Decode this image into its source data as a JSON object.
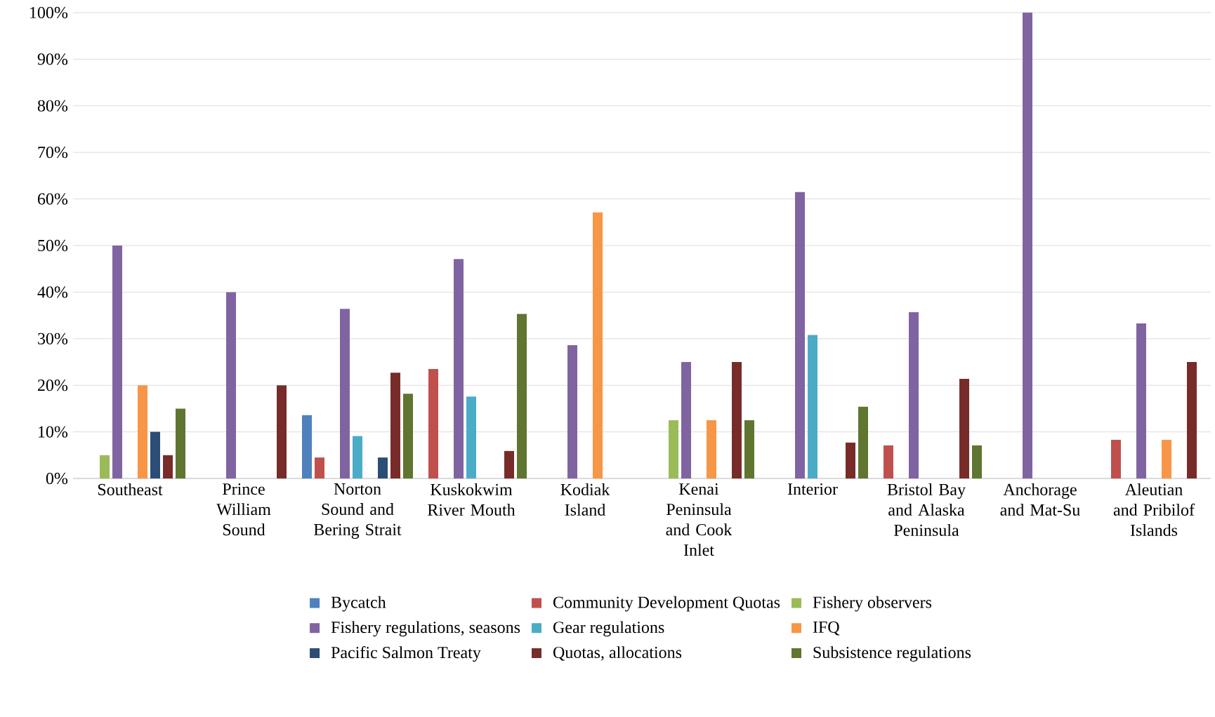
{
  "chart_data": {
    "type": "bar",
    "categories": [
      "Southeast",
      "Prince William Sound",
      "Norton Sound and Bering Strait",
      "Kuskokwim River Mouth",
      "Kodiak Island",
      "Kenai Peninsula and Cook Inlet",
      "Interior",
      "Bristol Bay and Alaska Peninsula",
      "Anchorage and Mat-Su",
      "Aleutian and Pribilof Islands"
    ],
    "series": [
      {
        "name": "Bycatch",
        "color": "#4f81bd",
        "values": [
          null,
          null,
          13.6,
          null,
          null,
          null,
          null,
          null,
          null,
          null
        ]
      },
      {
        "name": "Community Development Quotas",
        "color": "#c0504d",
        "values": [
          null,
          null,
          4.5,
          23.5,
          null,
          null,
          null,
          7.1,
          null,
          8.3
        ]
      },
      {
        "name": "Fishery observers",
        "color": "#9bbb59",
        "values": [
          5,
          null,
          null,
          null,
          null,
          12.5,
          null,
          null,
          null,
          null
        ]
      },
      {
        "name": "Fishery regulations, seasons",
        "color": "#8064a2",
        "values": [
          50,
          40,
          36.4,
          47.1,
          28.6,
          25,
          61.5,
          35.7,
          100,
          33.3
        ]
      },
      {
        "name": "Gear regulations",
        "color": "#4bacc6",
        "values": [
          null,
          null,
          9.1,
          17.6,
          null,
          null,
          30.8,
          null,
          null,
          null
        ]
      },
      {
        "name": "IFQ",
        "color": "#f79646",
        "values": [
          20,
          null,
          null,
          null,
          57.1,
          12.5,
          null,
          null,
          null,
          8.3
        ]
      },
      {
        "name": "Pacific Salmon Treaty",
        "color": "#2c4d75",
        "values": [
          10,
          null,
          4.5,
          null,
          null,
          null,
          null,
          null,
          null,
          null
        ]
      },
      {
        "name": "Quotas, allocations",
        "color": "#772c2a",
        "values": [
          5,
          20,
          22.7,
          5.9,
          null,
          25,
          7.7,
          21.4,
          null,
          25
        ]
      },
      {
        "name": "Subsistence regulations",
        "color": "#5f7530",
        "values": [
          15,
          null,
          18.2,
          35.3,
          null,
          12.5,
          15.4,
          7.1,
          null,
          null
        ]
      }
    ],
    "ylim": [
      0,
      100
    ],
    "yticks": [
      {
        "value": 0,
        "label": "0%"
      },
      {
        "value": 10,
        "label": "10%"
      },
      {
        "value": 20,
        "label": "20%"
      },
      {
        "value": 30,
        "label": "30%"
      },
      {
        "value": 40,
        "label": "40%"
      },
      {
        "value": 50,
        "label": "50%"
      },
      {
        "value": 60,
        "label": "60%"
      },
      {
        "value": 70,
        "label": "70%"
      },
      {
        "value": 80,
        "label": "80%"
      },
      {
        "value": 90,
        "label": "90%"
      },
      {
        "value": 100,
        "label": "100%"
      }
    ],
    "grid": "y",
    "legend": "bottom"
  }
}
